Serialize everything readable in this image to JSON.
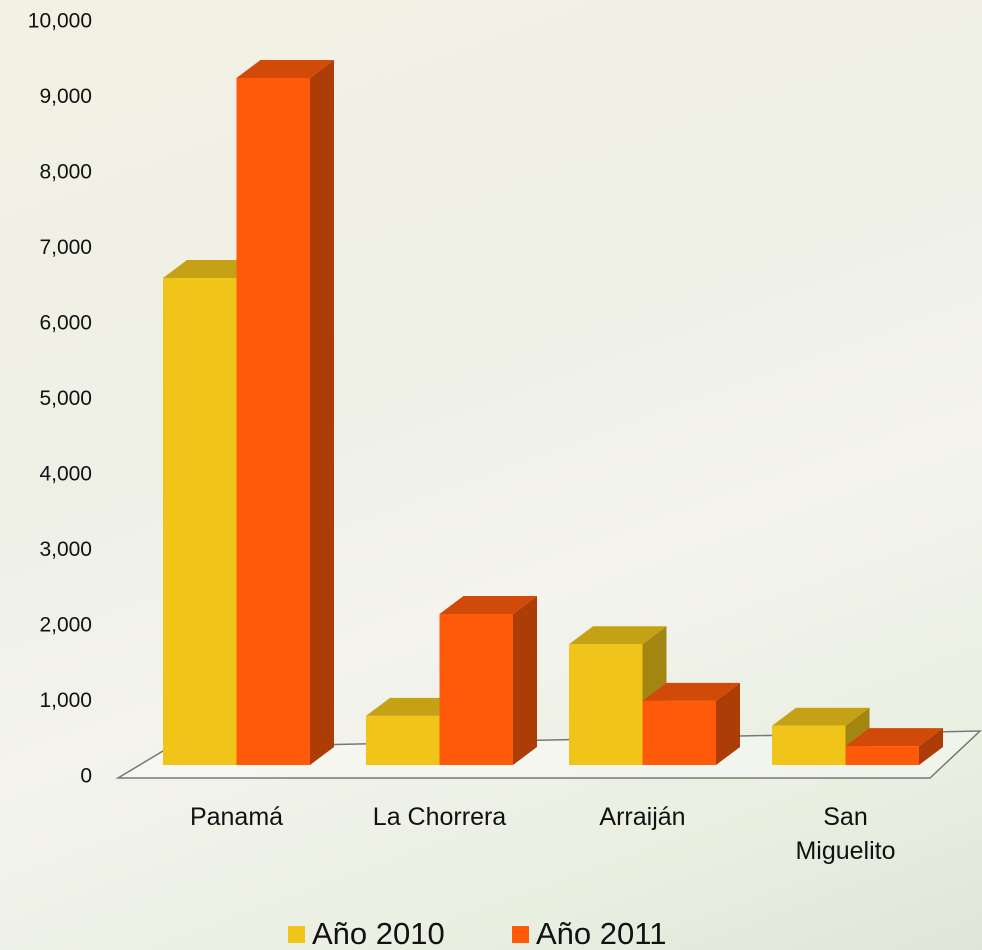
{
  "chart_data": {
    "type": "bar3d",
    "categories": [
      "Panamá",
      "La Chorrera",
      "Arraiján",
      "San Miguelito"
    ],
    "series": [
      {
        "name": "Año 2010",
        "color": "#f0c419",
        "values": [
          6450,
          650,
          1600,
          520
        ]
      },
      {
        "name": "Año 2011",
        "color": "#ff5a0a",
        "values": [
          9100,
          2000,
          850,
          250
        ]
      }
    ],
    "ylim": [
      0,
      10000
    ],
    "yticks": [
      {
        "value": 0,
        "label": "0"
      },
      {
        "value": 1000,
        "label": "1,000"
      },
      {
        "value": 2000,
        "label": "2,000"
      },
      {
        "value": 3000,
        "label": "3,000"
      },
      {
        "value": 4000,
        "label": "4,000"
      },
      {
        "value": 5000,
        "label": "5,000"
      },
      {
        "value": 6000,
        "label": "6,000"
      },
      {
        "value": 7000,
        "label": "7,000"
      },
      {
        "value": 8000,
        "label": "8,000"
      },
      {
        "value": 9000,
        "label": "9,000"
      },
      {
        "value": 10000,
        "label": "10,000"
      }
    ],
    "legend": "bottom"
  }
}
